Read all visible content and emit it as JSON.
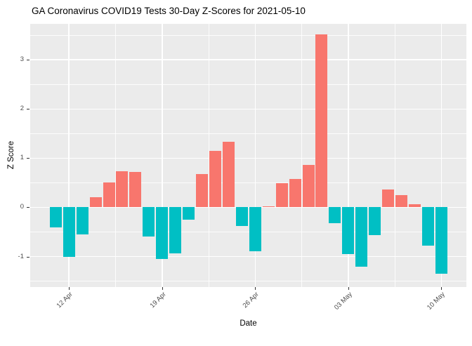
{
  "chart_data": {
    "type": "bar",
    "title": "GA Coronavirus COVID19 Tests 30-Day Z-Scores for 2021-05-10",
    "xlabel": "Date",
    "ylabel": "Z Score",
    "categories": [
      "2021-04-11",
      "2021-04-12",
      "2021-04-13",
      "2021-04-14",
      "2021-04-15",
      "2021-04-16",
      "2021-04-17",
      "2021-04-18",
      "2021-04-19",
      "2021-04-20",
      "2021-04-21",
      "2021-04-22",
      "2021-04-23",
      "2021-04-24",
      "2021-04-25",
      "2021-04-26",
      "2021-04-27",
      "2021-04-28",
      "2021-04-29",
      "2021-04-30",
      "2021-05-01",
      "2021-05-02",
      "2021-05-03",
      "2021-05-04",
      "2021-05-05",
      "2021-05-06",
      "2021-05-07",
      "2021-05-08",
      "2021-05-09",
      "2021-05-10"
    ],
    "values": [
      -0.41,
      -1.0,
      -0.55,
      0.2,
      0.5,
      0.74,
      0.72,
      -0.59,
      -1.05,
      -0.93,
      -0.25,
      0.68,
      1.15,
      1.34,
      -0.38,
      -0.89,
      0.02,
      0.49,
      0.57,
      0.86,
      3.52,
      -0.32,
      -0.95,
      -1.21,
      -0.57,
      0.36,
      0.25,
      0.07,
      -0.78,
      -1.35
    ],
    "x_tick_labels": [
      "12 Apr",
      "19 Apr",
      "26 Apr",
      "03 May",
      "10 May"
    ],
    "x_tick_bar_indices": [
      1,
      8,
      15,
      22,
      29
    ],
    "y_ticks": [
      -1,
      0,
      1,
      2,
      3
    ],
    "ylim": [
      -1.62,
      3.73
    ],
    "grid": "major and minor gridlines, white on gray panel",
    "legend": "none",
    "colors": {
      "positive_bar": "#F8766D",
      "negative_bar": "#00BFC4",
      "panel_background": "#EBEBEB",
      "gridline": "#FFFFFF",
      "axis_text": "#4D4D4D",
      "axis_title": "#000000",
      "title_text": "#000000",
      "tick_mark": "#333333"
    }
  }
}
